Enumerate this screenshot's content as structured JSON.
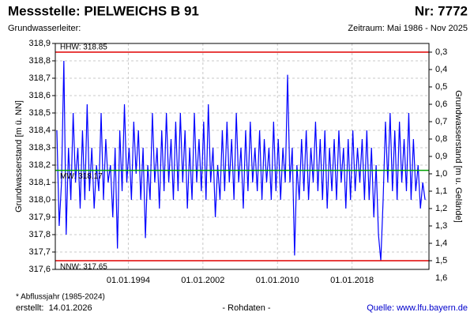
{
  "chart_data": {
    "type": "line",
    "title": "Messstelle: PIELWEICHS B 91",
    "number": "Nr: 7772",
    "subtitle_left": "Grundwasserleiter:",
    "subtitle_right": "Zeitraum: Mai 1986 - Nov 2025",
    "ylabel": "Grundwasserstand [m ü. NN]",
    "y2label": "Grundwasserstand [m u. Gelände]",
    "footnote": "* Abflussjahr (1985-2024)",
    "created": "erstellt:  14.01.2026",
    "data_note": "- Rohdaten -",
    "source": "Quelle: www.lfu.bayern.de",
    "grid": true,
    "xlim": [
      "1986-03",
      "2026-04"
    ],
    "xticks": [
      {
        "value": "1994-01-01",
        "label": "01.01.1994"
      },
      {
        "value": "2002-01-01",
        "label": "01.01.2002"
      },
      {
        "value": "2010-01-01",
        "label": "01.01.2010"
      },
      {
        "value": "2018-01-01",
        "label": "01.01.2018"
      }
    ],
    "ylim": [
      317.6,
      318.9
    ],
    "yticks": [
      {
        "value": 317.6,
        "label": "317,6"
      },
      {
        "value": 317.7,
        "label": "317,7"
      },
      {
        "value": 317.8,
        "label": "317,8"
      },
      {
        "value": 317.9,
        "label": "317,9"
      },
      {
        "value": 318.0,
        "label": "318,0"
      },
      {
        "value": 318.1,
        "label": "318,1"
      },
      {
        "value": 318.2,
        "label": "318,2"
      },
      {
        "value": 318.3,
        "label": "318,3"
      },
      {
        "value": 318.4,
        "label": "318,4"
      },
      {
        "value": 318.5,
        "label": "318,5"
      },
      {
        "value": 318.6,
        "label": "318,6"
      },
      {
        "value": 318.7,
        "label": "318,7"
      },
      {
        "value": 318.8,
        "label": "318,8"
      },
      {
        "value": 318.9,
        "label": "318,9"
      }
    ],
    "y2lim": [
      1.55,
      0.25
    ],
    "y2ticks": [
      {
        "value": 0.3,
        "label": "0,3"
      },
      {
        "value": 0.4,
        "label": "0,4"
      },
      {
        "value": 0.5,
        "label": "0,5"
      },
      {
        "value": 0.6,
        "label": "0,6"
      },
      {
        "value": 0.7,
        "label": "0,7"
      },
      {
        "value": 0.8,
        "label": "0,8"
      },
      {
        "value": 0.9,
        "label": "0,9"
      },
      {
        "value": 1.0,
        "label": "1,0"
      },
      {
        "value": 1.1,
        "label": "1,1"
      },
      {
        "value": 1.2,
        "label": "1,2"
      },
      {
        "value": 1.3,
        "label": "1,3"
      },
      {
        "value": 1.4,
        "label": "1,4"
      },
      {
        "value": 1.5,
        "label": "1,5"
      },
      {
        "value": 1.6,
        "label": "1,6"
      }
    ],
    "reference_lines": [
      {
        "label": "HHW: 318.85",
        "value": 318.85,
        "color": "#e00000"
      },
      {
        "label": "MW: 318.17",
        "value": 318.17,
        "color": "#00a000"
      },
      {
        "label": "NNW: 317.65",
        "value": 317.65,
        "color": "#e00000"
      }
    ],
    "x": [
      "1986-05",
      "1986-08",
      "1986-11",
      "1987-02",
      "1987-05",
      "1987-08",
      "1987-11",
      "1988-02",
      "1988-05",
      "1988-08",
      "1988-11",
      "1989-02",
      "1989-05",
      "1989-08",
      "1989-11",
      "1990-02",
      "1990-05",
      "1990-08",
      "1990-11",
      "1991-02",
      "1991-05",
      "1991-08",
      "1991-11",
      "1992-02",
      "1992-05",
      "1992-08",
      "1992-11",
      "1993-02",
      "1993-05",
      "1993-08",
      "1993-11",
      "1994-02",
      "1994-05",
      "1994-08",
      "1994-11",
      "1995-02",
      "1995-05",
      "1995-08",
      "1995-11",
      "1996-02",
      "1996-05",
      "1996-08",
      "1996-11",
      "1997-02",
      "1997-05",
      "1997-08",
      "1997-11",
      "1998-02",
      "1998-05",
      "1998-08",
      "1998-11",
      "1999-02",
      "1999-05",
      "1999-08",
      "1999-11",
      "2000-02",
      "2000-05",
      "2000-08",
      "2000-11",
      "2001-02",
      "2001-05",
      "2001-08",
      "2001-11",
      "2002-02",
      "2002-05",
      "2002-08",
      "2002-11",
      "2003-02",
      "2003-05",
      "2003-08",
      "2003-11",
      "2004-02",
      "2004-05",
      "2004-08",
      "2004-11",
      "2005-02",
      "2005-05",
      "2005-08",
      "2005-11",
      "2006-02",
      "2006-05",
      "2006-08",
      "2006-11",
      "2007-02",
      "2007-05",
      "2007-08",
      "2007-11",
      "2008-02",
      "2008-05",
      "2008-08",
      "2008-11",
      "2009-02",
      "2009-05",
      "2009-08",
      "2009-11",
      "2010-02",
      "2010-05",
      "2010-08",
      "2010-11",
      "2011-02",
      "2011-05",
      "2011-08",
      "2011-11",
      "2012-02",
      "2012-05",
      "2012-08",
      "2012-11",
      "2013-02",
      "2013-05",
      "2013-08",
      "2013-11",
      "2014-02",
      "2014-05",
      "2014-08",
      "2014-11",
      "2015-02",
      "2015-05",
      "2015-08",
      "2015-11",
      "2016-02",
      "2016-05",
      "2016-08",
      "2016-11",
      "2017-02",
      "2017-05",
      "2017-08",
      "2017-11",
      "2018-02",
      "2018-05",
      "2018-08",
      "2018-11",
      "2019-02",
      "2019-05",
      "2019-08",
      "2019-11",
      "2020-02",
      "2020-05",
      "2020-08",
      "2020-11",
      "2021-02",
      "2021-05",
      "2021-08",
      "2021-11",
      "2022-02",
      "2022-05",
      "2022-08",
      "2022-11",
      "2023-02",
      "2023-05",
      "2023-08",
      "2023-11",
      "2024-02",
      "2024-05",
      "2024-08",
      "2024-11",
      "2025-02",
      "2025-05",
      "2025-08",
      "2025-11"
    ],
    "series": [
      {
        "color": "#0000ff",
        "values": [
          318.4,
          317.85,
          318.1,
          318.8,
          317.8,
          318.3,
          318.0,
          318.5,
          318.1,
          318.3,
          317.95,
          318.4,
          318.0,
          318.55,
          318.05,
          318.3,
          317.95,
          318.2,
          318.05,
          318.5,
          318.0,
          318.35,
          318.1,
          318.2,
          317.9,
          318.3,
          317.72,
          318.4,
          318.05,
          318.55,
          318.1,
          318.3,
          318.0,
          318.45,
          318.15,
          318.4,
          318.0,
          318.3,
          317.78,
          318.2,
          318.0,
          318.5,
          318.1,
          318.3,
          317.95,
          318.4,
          318.05,
          318.5,
          318.1,
          318.35,
          318.0,
          318.45,
          318.05,
          318.5,
          318.1,
          318.4,
          317.95,
          318.3,
          318.0,
          318.5,
          318.1,
          318.35,
          318.05,
          318.45,
          318.0,
          318.55,
          318.1,
          318.3,
          317.9,
          318.2,
          318.0,
          318.4,
          318.05,
          318.45,
          318.1,
          318.35,
          318.0,
          318.5,
          318.1,
          318.3,
          317.95,
          318.4,
          318.05,
          318.45,
          318.1,
          318.3,
          318.05,
          318.4,
          318.0,
          318.35,
          318.1,
          318.3,
          318.0,
          318.45,
          318.05,
          318.35,
          318.0,
          318.3,
          318.1,
          318.72,
          318.1,
          318.3,
          317.68,
          318.2,
          318.0,
          318.35,
          318.05,
          318.4,
          318.0,
          318.3,
          318.1,
          318.45,
          318.05,
          318.35,
          318.0,
          318.4,
          317.95,
          318.3,
          318.05,
          318.35,
          318.0,
          318.4,
          318.1,
          318.3,
          317.95,
          318.35,
          318.0,
          318.4,
          318.05,
          318.3,
          318.1,
          318.35,
          318.0,
          318.4,
          318.0,
          318.3,
          317.9,
          318.2,
          317.8,
          317.65,
          318.0,
          318.45,
          318.1,
          318.5,
          318.05,
          318.4,
          318.0,
          318.45,
          318.1,
          318.35,
          318.05,
          318.5,
          318.0,
          318.35,
          318.05,
          318.2,
          317.95,
          318.1,
          318.0
        ]
      }
    ]
  }
}
